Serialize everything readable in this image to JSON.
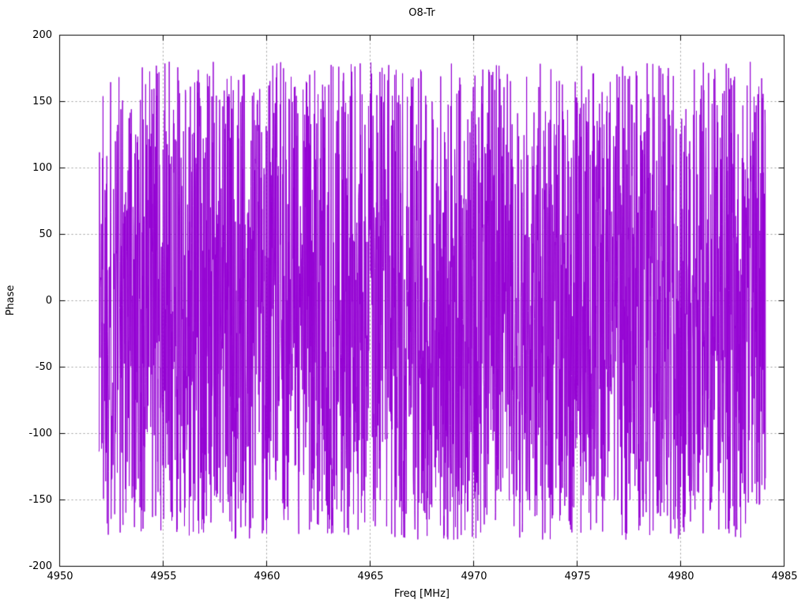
{
  "chart": {
    "title": "O8-Tr",
    "xlabel": "Freq [MHz]",
    "ylabel": "Phase"
  },
  "chart_data": {
    "type": "line",
    "title": "O8-Tr",
    "xlabel": "Freq [MHz]",
    "ylabel": "Phase",
    "xlim": [
      4950,
      4985
    ],
    "ylim": [
      -200,
      200
    ],
    "x_ticks": [
      4950,
      4955,
      4960,
      4965,
      4970,
      4975,
      4980,
      4985
    ],
    "y_ticks": [
      -200,
      -150,
      -100,
      -50,
      0,
      50,
      100,
      150,
      200
    ],
    "grid": true,
    "grid_style": "dashed",
    "legend": "none",
    "line_color": "#9400d3",
    "series": [
      {
        "name": "O8-Tr",
        "style": "lines",
        "x_start": 4951.9,
        "x_end": 4984.1,
        "n_points": 2800,
        "y_model": "wrapped-phase-noise",
        "y_distribution": "uniform",
        "y_min": -180,
        "y_max": 180,
        "seed": 1337
      }
    ]
  }
}
